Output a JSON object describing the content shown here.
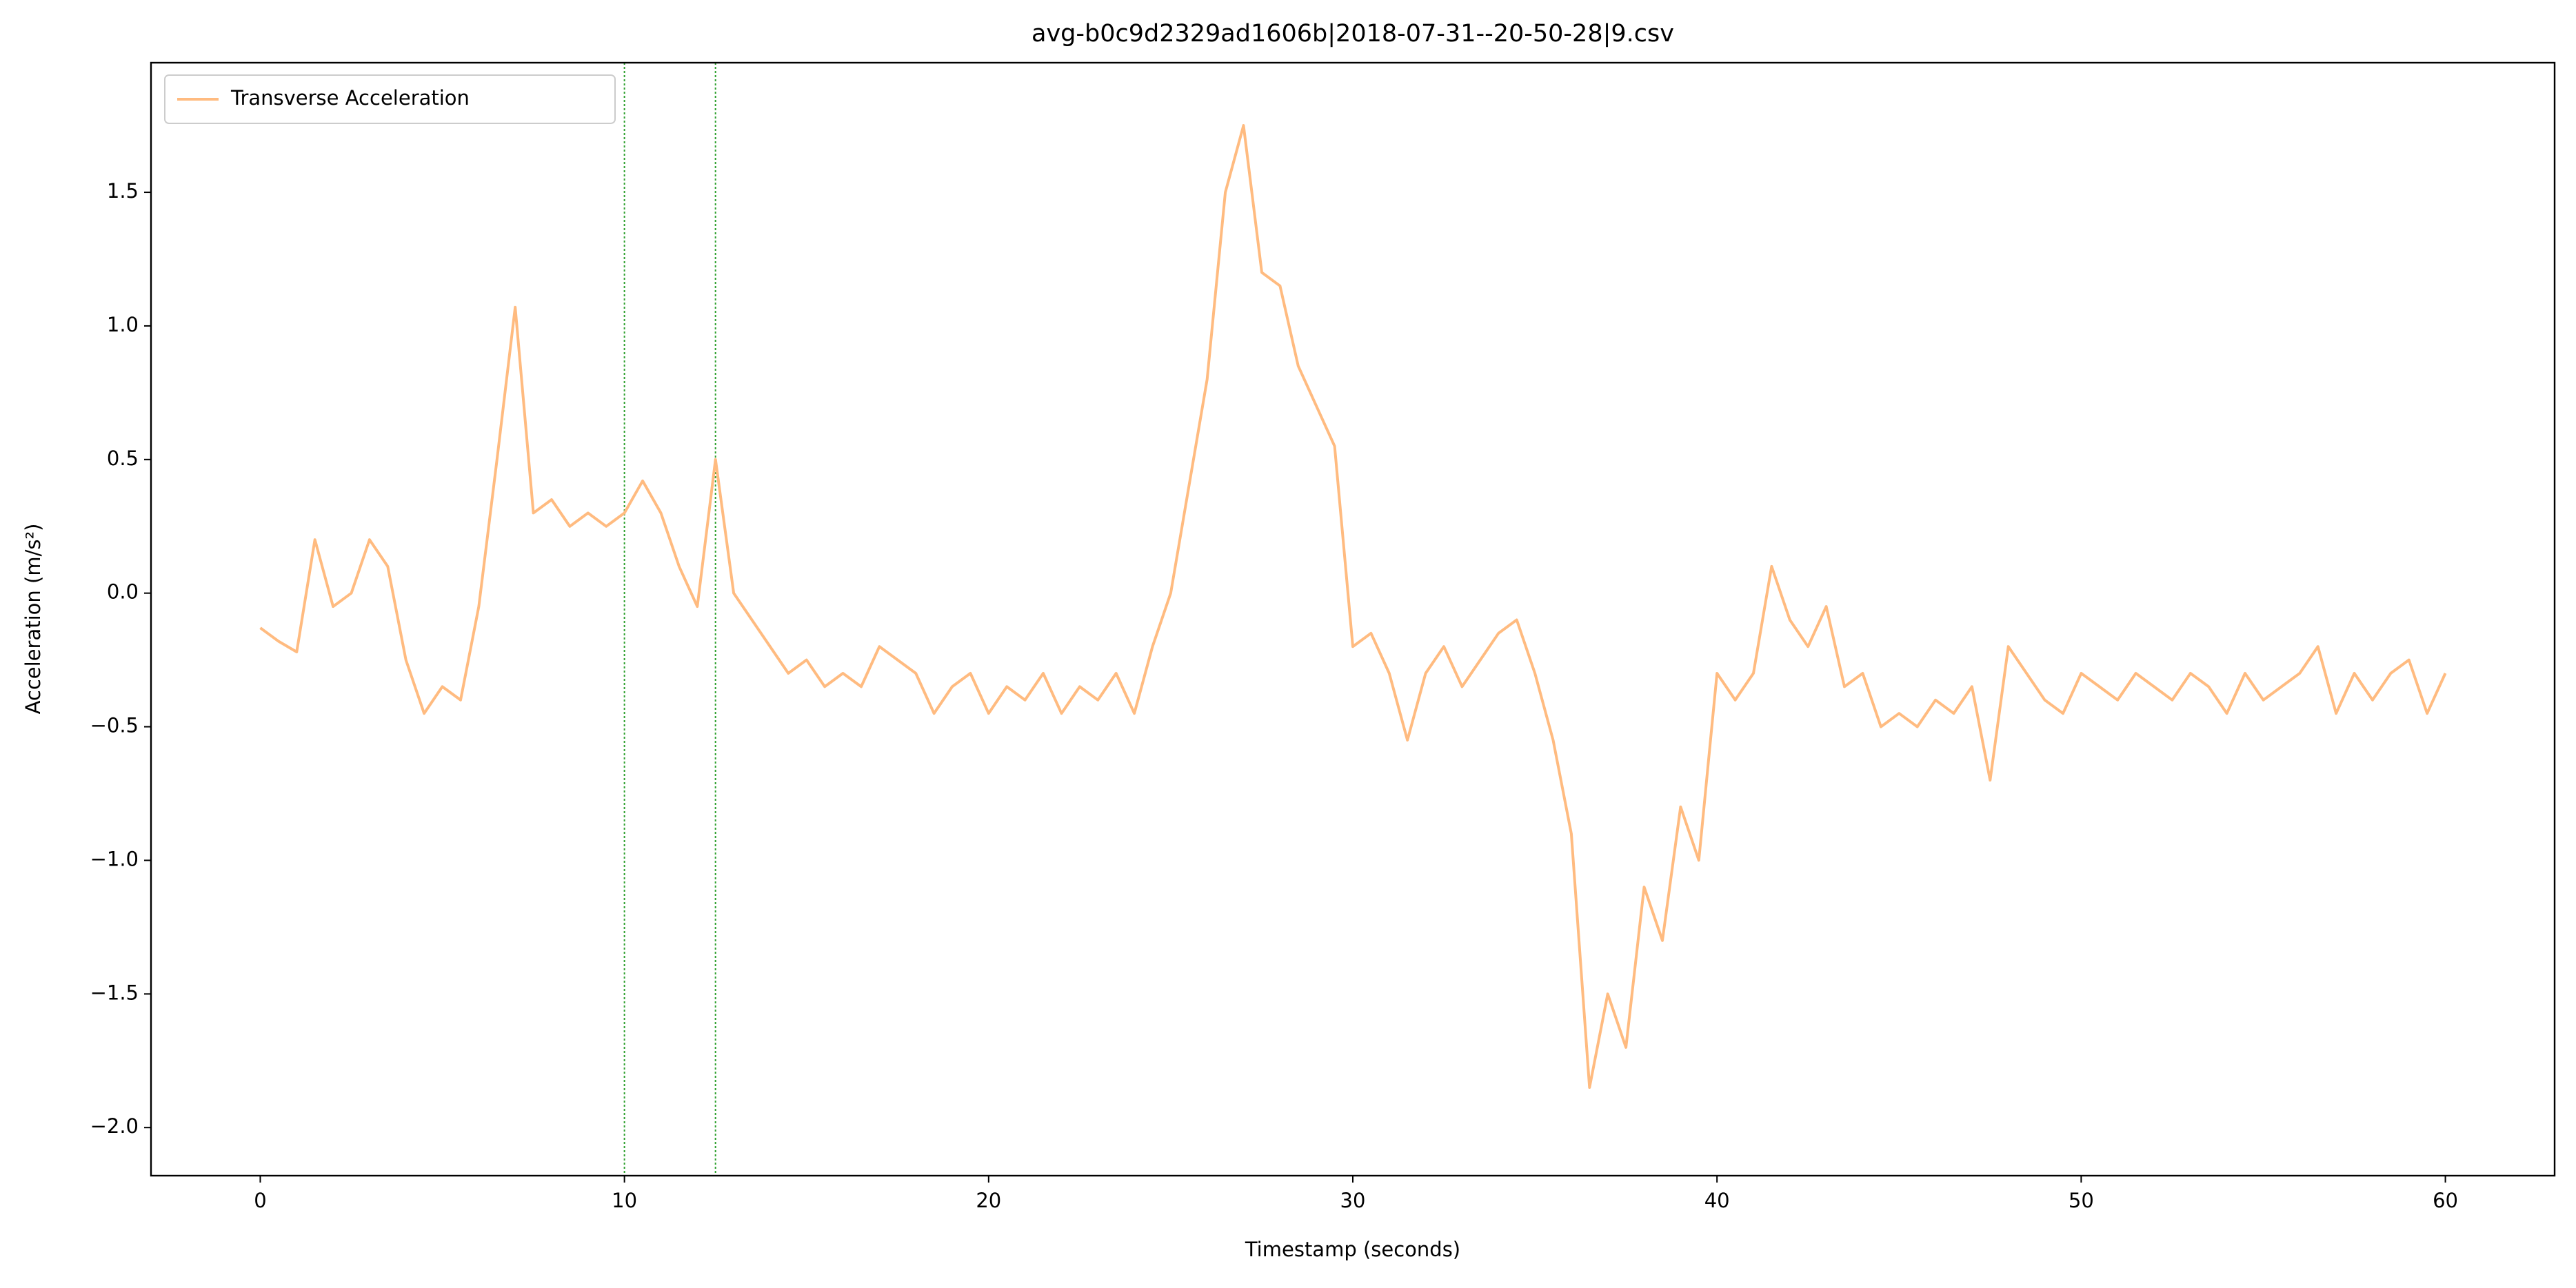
{
  "chart_data": {
    "type": "line",
    "title": "avg-b0c9d2329ad1606b|2018-07-31--20-50-28|9.csv",
    "xlabel": "Timestamp (seconds)",
    "ylabel": "Acceleration (m/s²)",
    "x": [
      0,
      0.5,
      1,
      1.5,
      2,
      2.5,
      3,
      3.5,
      4,
      4.5,
      5,
      5.5,
      6,
      6.5,
      7,
      7.5,
      8,
      8.5,
      9,
      9.5,
      10,
      10.5,
      11,
      11.5,
      12,
      12.5,
      13,
      13.5,
      14,
      14.5,
      15,
      15.5,
      16,
      16.5,
      17,
      17.5,
      18,
      18.5,
      19,
      19.5,
      20,
      20.5,
      21,
      21.5,
      22,
      22.5,
      23,
      23.5,
      24,
      24.5,
      25,
      25.5,
      26,
      26.5,
      27,
      27.5,
      28,
      28.5,
      29,
      29.5,
      30,
      30.5,
      31,
      31.5,
      32,
      32.5,
      33,
      33.5,
      34,
      34.5,
      35,
      35.5,
      36,
      36.5,
      37,
      37.5,
      38,
      38.5,
      39,
      39.5,
      40,
      40.5,
      41,
      41.5,
      42,
      42.5,
      43,
      43.5,
      44,
      44.5,
      45,
      45.5,
      46,
      46.5,
      47,
      47.5,
      48,
      48.5,
      49,
      49.5,
      50,
      50.5,
      51,
      51.5,
      52,
      52.5,
      53,
      53.5,
      54,
      54.5,
      55,
      55.5,
      56,
      56.5,
      57,
      57.5,
      58,
      58.5,
      59,
      59.5,
      60
    ],
    "series": [
      {
        "name": "Transverse Acceleration",
        "color": "#ffbb80",
        "values": [
          -0.13,
          -0.18,
          -0.22,
          0.2,
          -0.05,
          0.0,
          0.2,
          0.1,
          -0.25,
          -0.45,
          -0.35,
          -0.4,
          -0.05,
          0.5,
          1.07,
          0.3,
          0.35,
          0.25,
          0.3,
          0.25,
          0.3,
          0.42,
          0.3,
          0.1,
          -0.05,
          0.5,
          0.0,
          -0.1,
          -0.2,
          -0.3,
          -0.25,
          -0.35,
          -0.3,
          -0.35,
          -0.2,
          -0.25,
          -0.3,
          -0.45,
          -0.35,
          -0.3,
          -0.45,
          -0.35,
          -0.4,
          -0.3,
          -0.45,
          -0.35,
          -0.4,
          -0.3,
          -0.45,
          -0.2,
          0.0,
          0.4,
          0.8,
          1.5,
          1.75,
          1.2,
          1.15,
          0.85,
          0.7,
          0.55,
          -0.2,
          -0.15,
          -0.3,
          -0.55,
          -0.3,
          -0.2,
          -0.35,
          -0.25,
          -0.15,
          -0.1,
          -0.3,
          -0.55,
          -0.9,
          -1.85,
          -1.5,
          -1.7,
          -1.1,
          -1.3,
          -0.8,
          -1.0,
          -0.3,
          -0.4,
          -0.3,
          0.1,
          -0.1,
          -0.2,
          -0.05,
          -0.35,
          -0.3,
          -0.5,
          -0.45,
          -0.5,
          -0.4,
          -0.45,
          -0.35,
          -0.7,
          -0.2,
          -0.3,
          -0.4,
          -0.45,
          -0.3,
          -0.35,
          -0.4,
          -0.3,
          -0.35,
          -0.4,
          -0.3,
          -0.35,
          -0.45,
          -0.3,
          -0.4,
          -0.35,
          -0.3,
          -0.2,
          -0.45,
          -0.3,
          -0.4,
          -0.3,
          -0.25,
          -0.45,
          -0.3
        ]
      }
    ],
    "vlines": [
      10,
      12.5
    ],
    "vline_color": "#2ca02c",
    "xlim": [
      -3,
      63
    ],
    "xticks": [
      0,
      10,
      20,
      30,
      40,
      50,
      60
    ],
    "ylim": [
      -2.18,
      1.985
    ],
    "yticks": [
      {
        "value": -2,
        "label": "−2.0"
      },
      {
        "value": -1.5,
        "label": "−1.5"
      },
      {
        "value": -1,
        "label": "−1.0"
      },
      {
        "value": -0.5,
        "label": "−0.5"
      },
      {
        "value": 0,
        "label": "0.0"
      },
      0.5,
      {
        "value": 1,
        "label": "1.0"
      },
      1.5
    ],
    "legend": "upper left"
  }
}
